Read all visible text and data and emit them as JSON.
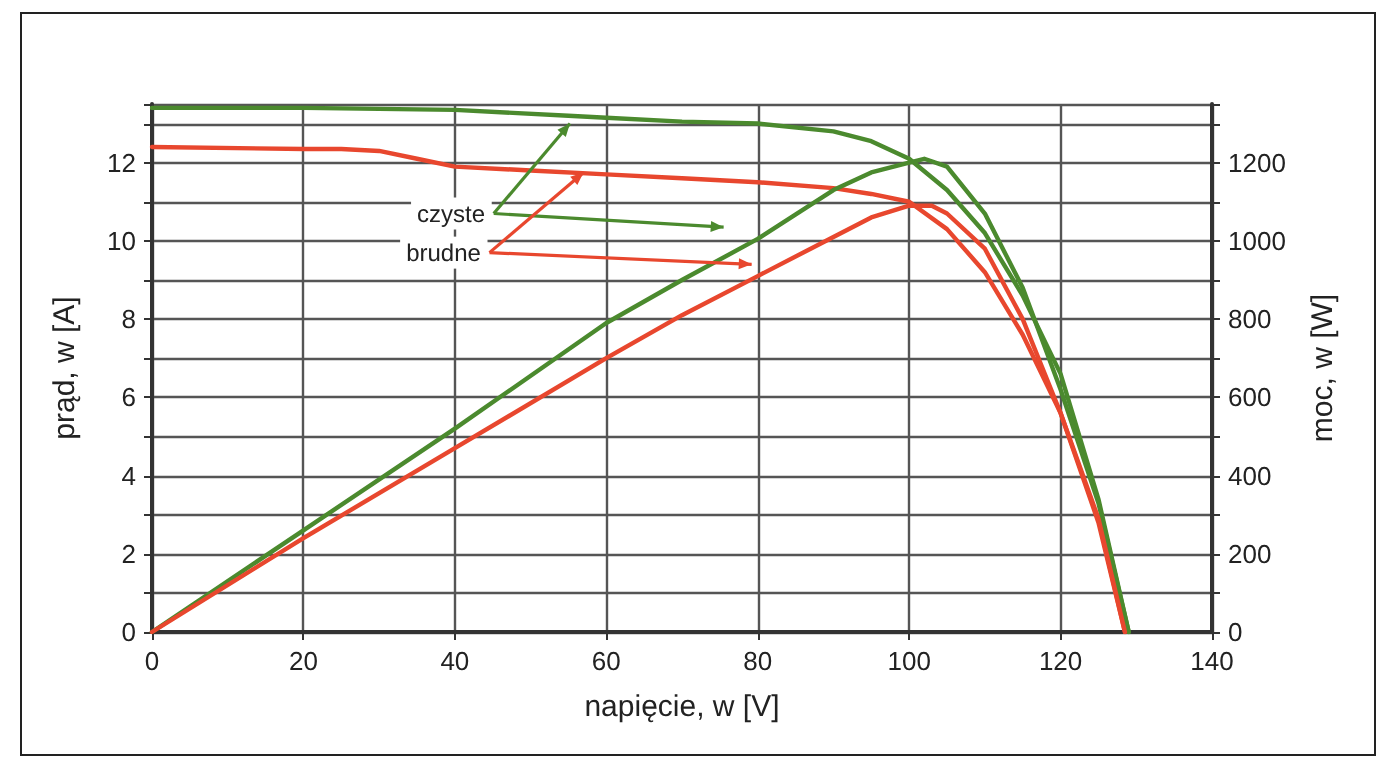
{
  "chart_data": {
    "type": "line",
    "xlabel": "napięcie, w [V]",
    "ylabel": "prąd, w [A]",
    "y2label": "moc, w [W]",
    "annotations": [
      {
        "text": "czyste",
        "x": 55.2,
        "y": 13.0
      },
      {
        "text": "brudne",
        "x": 57,
        "y": 11.75
      }
    ],
    "xlim": [
      0,
      140
    ],
    "xticks": [
      0,
      20,
      40,
      60,
      80,
      100,
      120,
      140
    ],
    "ylim": [
      0,
      13.5
    ],
    "yticks": [
      0,
      {
        "value": 1,
        "label": null
      },
      2,
      {
        "value": 3,
        "label": null
      },
      4,
      {
        "value": 5,
        "label": null
      },
      6,
      {
        "value": 7,
        "label": null
      },
      8,
      {
        "value": 9,
        "label": null
      },
      10,
      {
        "value": 11,
        "label": null
      },
      12,
      {
        "value": 13,
        "label": null
      }
    ],
    "y2lim": [
      0,
      1350
    ],
    "y2ticks": [
      0,
      {
        "value": 100,
        "label": null
      },
      200,
      {
        "value": 300,
        "label": null
      },
      400,
      {
        "value": 500,
        "label": null
      },
      600,
      {
        "value": 700,
        "label": null
      },
      800,
      {
        "value": 900,
        "label": null
      },
      1000,
      {
        "value": 1100,
        "label": null
      },
      1200,
      {
        "value": 1300,
        "label": null
      }
    ],
    "grid": true,
    "marker": "none",
    "line_style": "solid",
    "series": [
      {
        "color": "#4b8a2e",
        "x": [
          0,
          20,
          40,
          55,
          60,
          70,
          80,
          90,
          95,
          100,
          105,
          110,
          115,
          120,
          125,
          129
        ],
        "values": [
          13.4,
          13.4,
          13.35,
          13.2,
          13.15,
          13.05,
          13.0,
          12.8,
          12.55,
          12.1,
          11.3,
          10.2,
          8.6,
          6.6,
          3.4,
          0
        ]
      },
      {
        "color": "#e8472e",
        "x": [
          0,
          20,
          25,
          30,
          35,
          40,
          50,
          60,
          70,
          80,
          90,
          95,
          100,
          105,
          110,
          115,
          120,
          125,
          128.5
        ],
        "values": [
          12.4,
          12.35,
          12.35,
          12.3,
          12.1,
          11.9,
          11.8,
          11.7,
          11.6,
          11.5,
          11.35,
          11.2,
          11.0,
          10.3,
          9.2,
          7.6,
          5.6,
          2.8,
          0
        ]
      },
      {
        "color": "#4b8a2e",
        "axis": "y2",
        "x": [
          0,
          20,
          40,
          60,
          70,
          80,
          90,
          95,
          100,
          102,
          105,
          110,
          115,
          120,
          125,
          129
        ],
        "values": [
          0,
          260,
          520,
          790,
          900,
          1005,
          1130,
          1175,
          1200,
          1210,
          1190,
          1070,
          880,
          620,
          330,
          0
        ]
      },
      {
        "color": "#e8472e",
        "axis": "y2",
        "x": [
          0,
          20,
          40,
          60,
          70,
          80,
          90,
          95,
          100,
          103,
          105,
          110,
          115,
          120,
          125,
          128.5
        ],
        "values": [
          0,
          240,
          470,
          700,
          810,
          910,
          1010,
          1060,
          1090,
          1090,
          1070,
          980,
          800,
          560,
          290,
          0
        ]
      }
    ]
  }
}
